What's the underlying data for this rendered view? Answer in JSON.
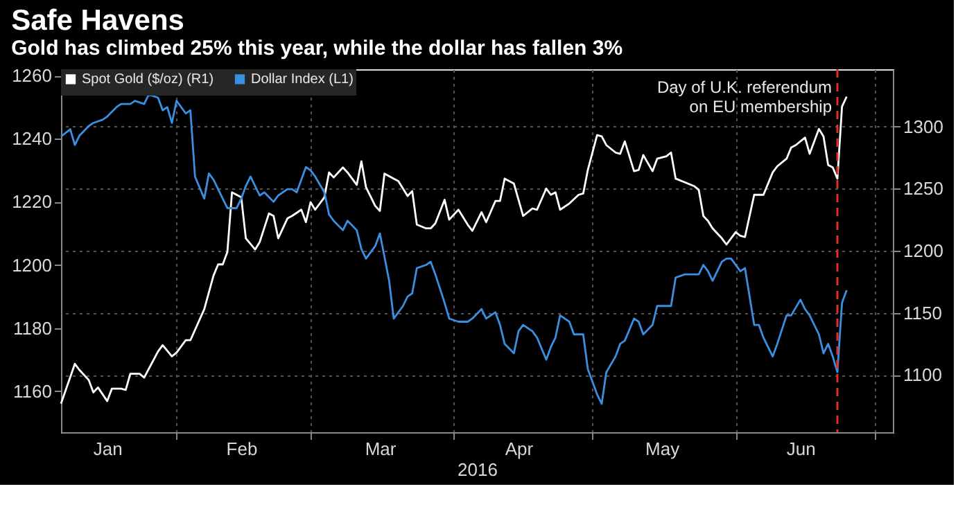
{
  "chart_data": {
    "type": "line",
    "title": "Safe Havens",
    "subtitle": "Gold has climbed 25% this year, while the dollar has fallen 3%",
    "xlabel": "2016",
    "series": [
      {
        "name": "Spot Gold ($/oz) (R1)",
        "color": "#ffffff",
        "axis": "y2",
        "x": [
          "2016-01-07",
          "2016-01-10",
          "2016-01-11",
          "2016-01-13",
          "2016-01-14",
          "2016-01-15",
          "2016-01-17",
          "2016-01-18",
          "2016-01-20",
          "2016-01-21",
          "2016-01-22",
          "2016-01-24",
          "2016-01-25",
          "2016-01-28",
          "2016-01-29",
          "2016-01-31",
          "2016-02-01",
          "2016-02-03",
          "2016-02-04",
          "2016-02-07",
          "2016-02-09",
          "2016-02-10",
          "2016-02-11",
          "2016-02-12",
          "2016-02-13",
          "2016-02-15",
          "2016-02-16",
          "2016-02-18",
          "2016-02-19",
          "2016-02-21",
          "2016-02-22",
          "2016-02-23",
          "2016-02-25",
          "2016-02-26",
          "2016-02-28",
          "2016-02-29",
          "2016-03-01",
          "2016-03-02",
          "2016-03-04",
          "2016-03-05",
          "2016-03-06",
          "2016-03-08",
          "2016-03-09",
          "2016-03-11",
          "2016-03-12",
          "2016-03-13",
          "2016-03-15",
          "2016-03-16",
          "2016-03-17",
          "2016-03-19",
          "2016-03-20",
          "2016-03-22",
          "2016-03-23",
          "2016-03-24",
          "2016-03-26",
          "2016-03-27",
          "2016-03-28",
          "2016-03-30",
          "2016-03-31",
          "2016-04-02",
          "2016-04-04",
          "2016-04-05",
          "2016-04-07",
          "2016-04-08",
          "2016-04-10",
          "2016-04-11",
          "2016-04-12",
          "2016-04-14",
          "2016-04-15",
          "2016-04-16",
          "2016-04-18",
          "2016-04-19",
          "2016-04-21",
          "2016-04-22",
          "2016-04-23",
          "2016-04-24",
          "2016-04-26",
          "2016-04-28",
          "2016-04-29",
          "2016-04-30",
          "2016-05-02",
          "2016-05-03",
          "2016-05-04",
          "2016-05-06",
          "2016-05-07",
          "2016-05-08",
          "2016-05-10",
          "2016-05-11",
          "2016-05-12",
          "2016-05-14",
          "2016-05-15",
          "2016-05-17",
          "2016-05-18",
          "2016-05-19",
          "2016-05-21",
          "2016-05-23",
          "2016-05-24",
          "2016-05-25",
          "2016-05-26",
          "2016-05-27",
          "2016-05-29",
          "2016-05-30",
          "2016-06-01",
          "2016-06-02",
          "2016-06-03",
          "2016-06-05",
          "2016-06-06",
          "2016-06-07",
          "2016-06-09",
          "2016-06-10",
          "2016-06-12",
          "2016-06-13",
          "2016-06-14",
          "2016-06-16",
          "2016-06-17",
          "2016-06-19",
          "2016-06-20",
          "2016-06-21",
          "2016-06-22",
          "2016-06-23",
          "2016-06-24",
          "2016-06-25"
        ],
        "values": [
          1077,
          1109,
          1104,
          1096,
          1086,
          1090,
          1079,
          1089,
          1089,
          1088,
          1101,
          1101,
          1098,
          1119,
          1124,
          1115,
          1118,
          1128,
          1128,
          1153,
          1180,
          1189,
          1189,
          1199,
          1247,
          1243,
          1210,
          1201,
          1207,
          1230,
          1228,
          1210,
          1226,
          1228,
          1233,
          1223,
          1239,
          1233,
          1243,
          1263,
          1259,
          1267,
          1263,
          1253,
          1272,
          1251,
          1236,
          1232,
          1262,
          1258,
          1256,
          1244,
          1248,
          1221,
          1218,
          1218,
          1222,
          1241,
          1225,
          1233,
          1221,
          1216,
          1231,
          1223,
          1240,
          1240,
          1258,
          1254,
          1241,
          1228,
          1234,
          1233,
          1250,
          1245,
          1247,
          1233,
          1238,
          1245,
          1246,
          1265,
          1293,
          1292,
          1285,
          1279,
          1278,
          1288,
          1264,
          1265,
          1277,
          1264,
          1274,
          1276,
          1279,
          1258,
          1255,
          1252,
          1249,
          1228,
          1224,
          1218,
          1210,
          1205,
          1215,
          1212,
          1211,
          1245,
          1245,
          1245,
          1263,
          1268,
          1274,
          1283,
          1285,
          1291,
          1278,
          1298,
          1292,
          1269,
          1267,
          1258,
          1316,
          1324
        ]
      },
      {
        "name": "Dollar Index (L1)",
        "color": "#3b8fe0",
        "x": [
          "2016-01-07",
          "2016-01-09",
          "2016-01-10",
          "2016-01-11",
          "2016-01-13",
          "2016-01-14",
          "2016-01-16",
          "2016-01-17",
          "2016-01-19",
          "2016-01-20",
          "2016-01-22",
          "2016-01-23",
          "2016-01-25",
          "2016-01-26",
          "2016-01-28",
          "2016-01-29",
          "2016-01-30",
          "2016-01-31",
          "2016-02-01",
          "2016-02-03",
          "2016-02-04",
          "2016-02-05",
          "2016-02-07",
          "2016-02-08",
          "2016-02-09",
          "2016-02-11",
          "2016-02-12",
          "2016-02-14",
          "2016-02-15",
          "2016-02-16",
          "2016-02-17",
          "2016-02-19",
          "2016-02-20",
          "2016-02-22",
          "2016-02-23",
          "2016-02-25",
          "2016-02-26",
          "2016-02-27",
          "2016-02-29",
          "2016-03-01",
          "2016-03-02",
          "2016-03-04",
          "2016-03-05",
          "2016-03-06",
          "2016-03-08",
          "2016-03-09",
          "2016-03-11",
          "2016-03-12",
          "2016-03-13",
          "2016-03-15",
          "2016-03-16",
          "2016-03-18",
          "2016-03-19",
          "2016-03-21",
          "2016-03-22",
          "2016-03-23",
          "2016-03-24",
          "2016-03-26",
          "2016-03-27",
          "2016-03-28",
          "2016-03-30",
          "2016-03-31",
          "2016-04-02",
          "2016-04-04",
          "2016-04-05",
          "2016-04-07",
          "2016-04-08",
          "2016-04-10",
          "2016-04-11",
          "2016-04-12",
          "2016-04-14",
          "2016-04-15",
          "2016-04-16",
          "2016-04-18",
          "2016-04-19",
          "2016-04-21",
          "2016-04-22",
          "2016-04-23",
          "2016-04-24",
          "2016-04-26",
          "2016-04-27",
          "2016-04-29",
          "2016-04-30",
          "2016-05-02",
          "2016-05-03",
          "2016-05-04",
          "2016-05-06",
          "2016-05-07",
          "2016-05-08",
          "2016-05-10",
          "2016-05-11",
          "2016-05-12",
          "2016-05-14",
          "2016-05-15",
          "2016-05-17",
          "2016-05-18",
          "2016-05-19",
          "2016-05-21",
          "2016-05-22",
          "2016-05-24",
          "2016-05-25",
          "2016-05-26",
          "2016-05-27",
          "2016-05-29",
          "2016-05-30",
          "2016-05-31",
          "2016-06-02",
          "2016-06-03",
          "2016-06-05",
          "2016-06-06",
          "2016-06-07",
          "2016-06-09",
          "2016-06-10",
          "2016-06-12",
          "2016-06-13",
          "2016-06-15",
          "2016-06-16",
          "2016-06-17",
          "2016-06-19",
          "2016-06-20",
          "2016-06-21",
          "2016-06-22",
          "2016-06-23",
          "2016-06-24",
          "2016-06-25"
        ],
        "values": [
          1240.7,
          1243,
          1238,
          1241,
          1244,
          1245,
          1246,
          1247,
          1250,
          1251,
          1251,
          1252,
          1251,
          1254,
          1253,
          1249,
          1250,
          1245,
          1252,
          1248,
          1249,
          1228,
          1221,
          1229,
          1227,
          1221,
          1218,
          1218,
          1221,
          1225,
          1228,
          1222,
          1223,
          1220,
          1222,
          1224,
          1224,
          1223,
          1231,
          1230,
          1228,
          1223,
          1216,
          1214,
          1211,
          1214,
          1211,
          1205,
          1202,
          1206,
          1210,
          1195,
          1183,
          1187,
          1190,
          1191,
          1199,
          1200,
          1201,
          1197,
          1188,
          1183,
          1182,
          1182,
          1183,
          1186,
          1183,
          1185,
          1181,
          1175,
          1172,
          1179,
          1181,
          1179,
          1177,
          1170,
          1174,
          1177,
          1184,
          1182,
          1178,
          1178,
          1167,
          1159,
          1156,
          1166,
          1171,
          1175,
          1176,
          1183,
          1182,
          1178,
          1181,
          1187,
          1187,
          1187,
          1196,
          1197,
          1197,
          1197,
          1200,
          1198,
          1195,
          1201,
          1202,
          1202,
          1198,
          1199,
          1181,
          1181,
          1177,
          1171,
          1175,
          1184,
          1184,
          1189,
          1186,
          1184,
          1178,
          1172,
          1175,
          1171,
          1166,
          1188,
          1192
        ]
      }
    ],
    "xlim": [
      "2016-01-07",
      "2016-07-05"
    ],
    "xticks": [
      {
        "value": "2016-01-17",
        "label": "Jan"
      },
      {
        "value": "2016-02-01",
        "label": null
      },
      {
        "value": "2016-02-15",
        "label": "Feb"
      },
      {
        "value": "2016-03-01",
        "label": null
      },
      {
        "value": "2016-03-16",
        "label": "Mar"
      },
      {
        "value": "2016-04-01",
        "label": null
      },
      {
        "value": "2016-04-15",
        "label": "Apr"
      },
      {
        "value": "2016-05-01",
        "label": null
      },
      {
        "value": "2016-05-16",
        "label": "May"
      },
      {
        "value": "2016-06-01",
        "label": null
      },
      {
        "value": "2016-06-15",
        "label": "Jun"
      },
      {
        "value": "2016-07-01",
        "label": null
      }
    ],
    "ylim": [
      1147,
      1262
    ],
    "yticks": [
      1160,
      1180,
      1200,
      1220,
      1240,
      1260
    ],
    "y2lim": [
      1054,
      1346
    ],
    "y2ticks": [
      1100,
      1150,
      1200,
      1250,
      1300
    ],
    "ref_lines": [
      {
        "axis": "x",
        "value": "2016-06-23",
        "label": "Day of U.K. referendum\non EU membership",
        "color": "#e0302a",
        "line_style": "dashed"
      }
    ],
    "grid": true,
    "legend": "top left"
  }
}
